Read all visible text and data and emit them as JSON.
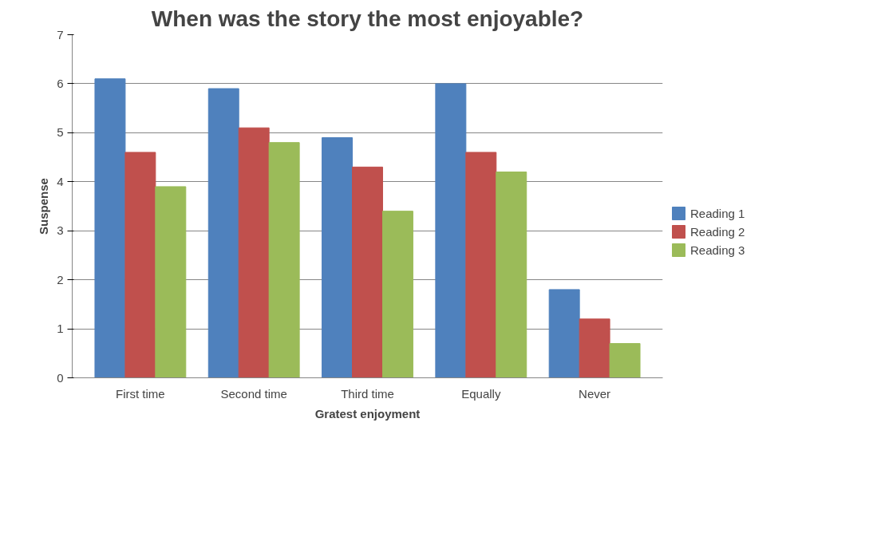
{
  "chart_data": {
    "type": "bar",
    "title": "When was the story the most enjoyable?",
    "xlabel": "Gratest enjoyment",
    "ylabel": "Suspense",
    "categories": [
      "First time",
      "Second time",
      "Third time",
      "Equally",
      "Never"
    ],
    "series": [
      {
        "name": "Reading 1",
        "color": "#4f81bd",
        "values": [
          6.1,
          5.9,
          4.9,
          6.0,
          1.8
        ]
      },
      {
        "name": "Reading 2",
        "color": "#c0504d",
        "values": [
          4.6,
          5.1,
          4.3,
          4.6,
          1.2
        ]
      },
      {
        "name": "Reading 3",
        "color": "#9bbb59",
        "values": [
          3.9,
          4.8,
          3.4,
          4.2,
          0.7
        ]
      }
    ],
    "ylim": [
      0,
      7
    ],
    "yticks": [
      0,
      1,
      2,
      3,
      4,
      5,
      6,
      7
    ],
    "grid": "y",
    "legend": "right"
  }
}
